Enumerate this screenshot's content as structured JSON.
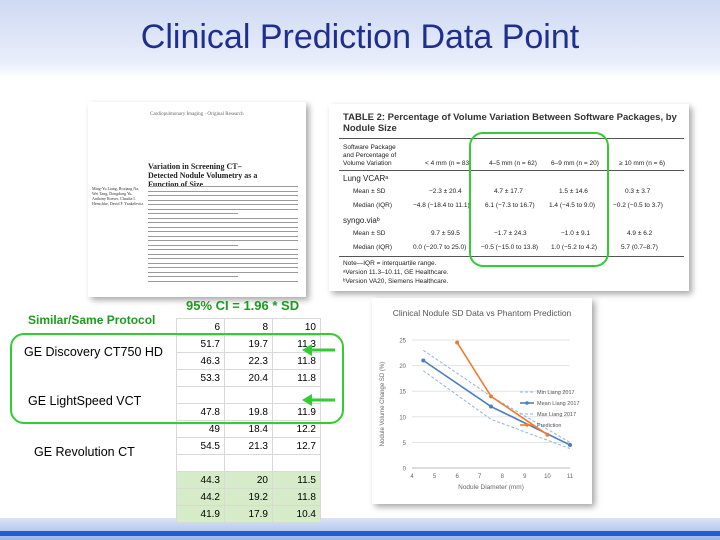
{
  "slide_title": "Clinical Prediction Data Point",
  "paper": {
    "header": "Cardiopulmonary Imaging · Original Research",
    "title": "Variation in Screening CT–Detected Nodule Volumetry as a Function of Size",
    "authors": "Ming-Yu Liang, Boxiang Na, Wei Tang, Dongdong Yu, Anthony Roeser, Claudia I. Henschke, David F. Yankelevitz"
  },
  "table2": {
    "title": "TABLE 2: Percentage of Volume Variation Between Software Packages, by Nodule Size",
    "header_col": "Software Package and Percentage of Volume Variation",
    "columns": [
      "< 4 mm (n = 83)",
      "4–5 mm (n = 62)",
      "6–9 mm (n = 20)",
      "≥ 10 mm (n = 6)"
    ],
    "group1": "Lung VCARᵃ",
    "group2": "syngo.viaᵇ",
    "rows": [
      {
        "label": "Mean ± SD",
        "values": [
          "−2.3 ± 20.4",
          "4.7 ± 17.7",
          "1.5 ± 14.6",
          "0.3 ± 3.7"
        ]
      },
      {
        "label": "Median (IQR)",
        "values": [
          "−4.8 (−18.4 to 11.1)",
          "6.1 (−7.3 to 16.7)",
          "1.4 (−4.5 to 9.0)",
          "−0.2 (−0.5 to 3.7)"
        ]
      },
      {
        "label": "Mean ± SD",
        "values": [
          "9.7 ± 59.5",
          "−1.7 ± 24.3",
          "−1.0 ± 9.1",
          "4.9 ± 6.2"
        ]
      },
      {
        "label": "Median (IQR)",
        "values": [
          "0.0 (−20.7 to 25.0)",
          "−0.5 (−15.0 to 13.8)",
          "1.0 (−5.2 to 4.2)",
          "5.7 (0.7–8.7)"
        ]
      }
    ],
    "notes": [
      "Note—IQR = interquartile range.",
      "ᵃVersion 11.3–10.11, GE Healthcare.",
      "ᵇVersion VA20, Siemens Healthcare."
    ]
  },
  "ci_label": "95% CI = 1.96 * SD",
  "protocol_label": "Similar/Same Protocol",
  "scanner_labels": [
    "GE Discovery CT750 HD",
    "GE LightSpeed VCT",
    "GE Revolution CT"
  ],
  "grid": {
    "headers": [
      "6",
      "8",
      "10"
    ],
    "rows": [
      [
        "51.7",
        "19.7",
        "11.3"
      ],
      [
        "46.3",
        "22.3",
        "11.8"
      ],
      [
        "53.3",
        "20.4",
        "11.8"
      ],
      [
        "",
        "",
        ""
      ],
      [
        "47.8",
        "19.8",
        "11.9"
      ],
      [
        "49",
        "18.4",
        "12.2"
      ],
      [
        "54.5",
        "21.3",
        "12.7"
      ],
      [
        "",
        "",
        ""
      ],
      [
        "44.3",
        "20",
        "11.5"
      ],
      [
        "44.2",
        "19.2",
        "11.8"
      ],
      [
        "41.9",
        "17.9",
        "10.4"
      ]
    ]
  },
  "colors": {
    "title": "#1f2f8f",
    "green": "#33cc33",
    "band": "#1f5fd6",
    "mean": "#4a7fc1",
    "band_line": "#8db3e2",
    "prediction": "#ed7d31"
  },
  "chart_data": {
    "type": "line",
    "title": "Clinical Nodule SD Data vs Phantom Prediction",
    "xlabel": "Nodule Diameter (mm)",
    "ylabel": "Nodule Volume Change SD (%)",
    "xlim": [
      4,
      11
    ],
    "ylim": [
      0,
      25
    ],
    "xticks": [
      "4",
      "5",
      "6",
      "7",
      "8",
      "9",
      "10",
      "11"
    ],
    "yticks": [
      "0",
      "5",
      "10",
      "15",
      "20",
      "25"
    ],
    "legend_position": "right",
    "series": [
      {
        "name": "Min Liang 2017",
        "style": "dashed",
        "x": [
          4.5,
          7.5,
          11
        ],
        "y": [
          19,
          9.5,
          3.8
        ]
      },
      {
        "name": "Mean Liang 2017",
        "style": "solid",
        "x": [
          4.5,
          7.5,
          11
        ],
        "y": [
          21,
          12,
          4.5
        ]
      },
      {
        "name": "Max Liang 2017",
        "style": "dashed",
        "x": [
          4.5,
          7.5,
          11
        ],
        "y": [
          23,
          14,
          5
        ]
      },
      {
        "name": "Prediction",
        "style": "solid",
        "x": [
          6,
          7.5,
          10
        ],
        "y": [
          24.5,
          14,
          6.5
        ]
      }
    ]
  }
}
